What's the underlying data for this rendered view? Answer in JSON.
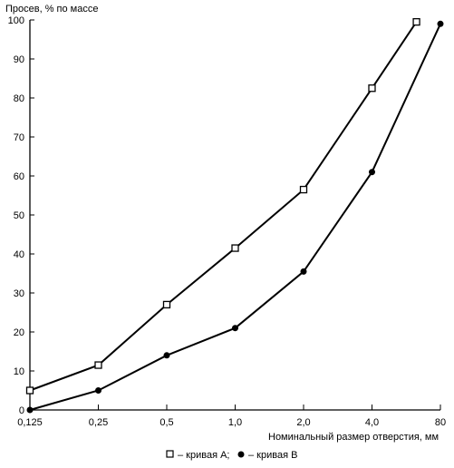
{
  "chart_data": {
    "type": "line",
    "title": "",
    "ylabel": "Просев, % по массе",
    "xlabel": "Номинальный размер отверстия, мм",
    "ylim": [
      0,
      100
    ],
    "yticks": [
      0,
      10,
      20,
      30,
      40,
      50,
      60,
      70,
      80,
      90,
      100
    ],
    "x_categories": [
      "0,125",
      "0,25",
      "0,5",
      "1,0",
      "2,0",
      "4,0",
      "80"
    ],
    "grid": false,
    "legend_position": "bottom-center",
    "series": [
      {
        "name": "кривая А",
        "marker": "open-square",
        "color": "#000000",
        "points": [
          {
            "x": 0,
            "y": 5
          },
          {
            "x": 1,
            "y": 11.5
          },
          {
            "x": 2,
            "y": 27
          },
          {
            "x": 3,
            "y": 41.5
          },
          {
            "x": 4,
            "y": 56.5
          },
          {
            "x": 5,
            "y": 82.5
          },
          {
            "x": 5.65,
            "y": 99.5
          }
        ]
      },
      {
        "name": "кривая В",
        "marker": "filled-circle",
        "color": "#000000",
        "points": [
          {
            "x": 0,
            "y": 0
          },
          {
            "x": 1,
            "y": 5
          },
          {
            "x": 2,
            "y": 14
          },
          {
            "x": 3,
            "y": 21
          },
          {
            "x": 4,
            "y": 35.5
          },
          {
            "x": 5,
            "y": 61
          },
          {
            "x": 6,
            "y": 99
          }
        ]
      }
    ],
    "legend": {
      "text_a": "– кривая А;",
      "text_b": "– кривая В"
    }
  }
}
